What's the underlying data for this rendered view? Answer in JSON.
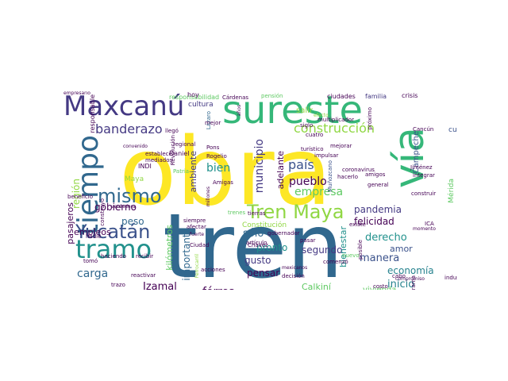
{
  "colors": {
    "background": "#ffffff",
    "palette": [
      "#fde725",
      "#35b779",
      "#31688e",
      "#443983",
      "#440154",
      "#90d743",
      "#21918c",
      "#3b528b",
      "#5ec962",
      "#26828e"
    ]
  },
  "words": [
    {
      "text": "obra",
      "size": 118,
      "color": "#fde725",
      "rot": 0
    },
    {
      "text": "tren",
      "size": 112,
      "color": "#31688e",
      "rot": 0
    },
    {
      "text": "sureste",
      "size": 48,
      "color": "#35b779",
      "rot": 0
    },
    {
      "text": "vía",
      "size": 52,
      "color": "#35b779",
      "rot": -90
    },
    {
      "text": "Maxcanú",
      "size": 34,
      "color": "#443983",
      "rot": 0
    },
    {
      "text": "tiempo",
      "size": 36,
      "color": "#31688e",
      "rot": -90
    },
    {
      "text": "tramo",
      "size": 32,
      "color": "#21918c",
      "rot": 0
    },
    {
      "text": "mismo",
      "size": 24,
      "color": "#31688e",
      "rot": 0
    },
    {
      "text": "Tren Maya",
      "size": 24,
      "color": "#90d743",
      "rot": 0
    },
    {
      "text": "Yucatán",
      "size": 24,
      "color": "#3b528b",
      "rot": 0
    },
    {
      "text": "banderazo",
      "size": 16,
      "color": "#443983",
      "rot": 0
    },
    {
      "text": "construcción",
      "size": 16,
      "color": "#90d743",
      "rot": 0
    },
    {
      "text": "país",
      "size": 16,
      "color": "#3b528b",
      "rot": 0
    },
    {
      "text": "pueblo",
      "size": 14,
      "color": "#440154",
      "rot": 0
    },
    {
      "text": "empresa",
      "size": 14,
      "color": "#5ec962",
      "rot": 0
    },
    {
      "text": "municipio",
      "size": 14,
      "color": "#443983",
      "rot": -90
    },
    {
      "text": "bien",
      "size": 14,
      "color": "#21918c",
      "rot": 0
    },
    {
      "text": "gobierno",
      "size": 12,
      "color": "#440154",
      "rot": 0
    },
    {
      "text": "pandemia",
      "size": 12,
      "color": "#443983",
      "rot": 0
    },
    {
      "text": "felicidad",
      "size": 12,
      "color": "#440154",
      "rot": 0
    },
    {
      "text": "peso",
      "size": 12,
      "color": "#31688e",
      "rot": 0
    },
    {
      "text": "empleos",
      "size": 11,
      "color": "#440154",
      "rot": 0
    },
    {
      "text": "carga",
      "size": 14,
      "color": "#31688e",
      "rot": 0
    },
    {
      "text": "Izamal",
      "size": 13,
      "color": "#440154",
      "rot": 0
    },
    {
      "text": "derecho",
      "size": 13,
      "color": "#21918c",
      "rot": 0
    },
    {
      "text": "amor",
      "size": 11,
      "color": "#3b528b",
      "rot": 0
    },
    {
      "text": "manera",
      "size": 13,
      "color": "#3b528b",
      "rot": 0
    },
    {
      "text": "economía",
      "size": 12,
      "color": "#26828e",
      "rot": 0
    },
    {
      "text": "inicio",
      "size": 13,
      "color": "#26828e",
      "rot": 0
    },
    {
      "text": "sólo",
      "size": 13,
      "color": "#31688e",
      "rot": 0
    },
    {
      "text": "pronto",
      "size": 12,
      "color": "#21918c",
      "rot": 0
    },
    {
      "text": "gusto",
      "size": 12,
      "color": "#443983",
      "rot": 0
    },
    {
      "text": "segundo",
      "size": 12,
      "color": "#443983",
      "rot": 0
    },
    {
      "text": "pensar",
      "size": 12,
      "color": "#440154",
      "rot": 0
    },
    {
      "text": "férrea",
      "size": 14,
      "color": "#440154",
      "rot": 0
    },
    {
      "text": "vivienda",
      "size": 10,
      "color": "#5ec962",
      "rot": 0
    },
    {
      "text": "Calkiní",
      "size": 11,
      "color": "#5ec962",
      "rot": 0
    },
    {
      "text": "Constitución",
      "size": 9,
      "color": "#90d743",
      "rot": 0
    },
    {
      "text": "importante",
      "size": 12,
      "color": "#31688e",
      "rot": -90
    },
    {
      "text": "adelante",
      "size": 11,
      "color": "#440154",
      "rot": -90
    },
    {
      "text": "ambiente",
      "size": 11,
      "color": "#443983",
      "rot": -90
    },
    {
      "text": "bienestar",
      "size": 11,
      "color": "#21918c",
      "rot": -90
    },
    {
      "text": "región",
      "size": 12,
      "color": "#90d743",
      "rot": -90
    },
    {
      "text": "pasajeros",
      "size": 11,
      "color": "#440154",
      "rot": -90
    },
    {
      "text": "kilómetros",
      "size": 11,
      "color": "#5ec962",
      "rot": -90
    },
    {
      "text": "Campeche",
      "size": 10,
      "color": "#3b528b",
      "rot": -90
    },
    {
      "text": "cualquier",
      "size": 9,
      "color": "#3b528b",
      "rot": 0
    },
    {
      "text": "Mérida",
      "size": 9,
      "color": "#5ec962",
      "rot": -90
    },
    {
      "text": "responsable",
      "size": 8,
      "color": "#440154",
      "rot": -90
    },
    {
      "text": "responsabilidad",
      "size": 8,
      "color": "#5ec962",
      "rot": 0
    },
    {
      "text": "Cárdenas",
      "size": 7,
      "color": "#440154",
      "rot": 0
    },
    {
      "text": "pensión",
      "size": 7,
      "color": "#5ec962",
      "rot": 0
    },
    {
      "text": "ciudades",
      "size": 8,
      "color": "#440154",
      "rot": 0
    },
    {
      "text": "familia",
      "size": 8,
      "color": "#443983",
      "rot": 0
    },
    {
      "text": "crisis",
      "size": 8,
      "color": "#440154",
      "rot": 0
    },
    {
      "text": "multiplicador",
      "size": 7,
      "color": "#440154",
      "rot": 0
    },
    {
      "text": "cultura",
      "size": 9,
      "color": "#443983",
      "rot": 0
    },
    {
      "text": "hoy",
      "size": 8,
      "color": "#440154",
      "rot": 0
    },
    {
      "text": "salir",
      "size": 10,
      "color": "#90d743",
      "rot": 0
    },
    {
      "text": "Lázaro",
      "size": 7,
      "color": "#31688e",
      "rot": -90
    },
    {
      "text": "mejor",
      "size": 7,
      "color": "#440154",
      "rot": 0
    },
    {
      "text": "siglo",
      "size": 7,
      "color": "#440154",
      "rot": 0
    },
    {
      "text": "cuatro",
      "size": 7,
      "color": "#440154",
      "rot": 0
    },
    {
      "text": "Cancún",
      "size": 7,
      "color": "#440154",
      "rot": 0
    },
    {
      "text": "próximo",
      "size": 7,
      "color": "#440154",
      "rot": -90
    },
    {
      "text": "Revolución",
      "size": 7,
      "color": "#440154",
      "rot": -90
    },
    {
      "text": "llegó",
      "size": 7,
      "color": "#440154",
      "rot": 0
    },
    {
      "text": "establece",
      "size": 7,
      "color": "#440154",
      "rot": 0
    },
    {
      "text": "mediados",
      "size": 7,
      "color": "#440154",
      "rot": 0
    },
    {
      "text": "regional",
      "size": 7,
      "color": "#440154",
      "rot": 0
    },
    {
      "text": "Pons",
      "size": 7,
      "color": "#440154",
      "rot": 0
    },
    {
      "text": "Rogelio",
      "size": 7,
      "color": "#440154",
      "rot": 0
    },
    {
      "text": "Patria",
      "size": 7,
      "color": "#5ec962",
      "rot": 0
    },
    {
      "text": "Amigas",
      "size": 7,
      "color": "#440154",
      "rot": 0
    },
    {
      "text": "INDI",
      "size": 8,
      "color": "#440154",
      "rot": 0
    },
    {
      "text": "Maya",
      "size": 9,
      "color": "#90d743",
      "rot": 0
    },
    {
      "text": "Daniel",
      "size": 8,
      "color": "#440154",
      "rot": 0
    },
    {
      "text": "Muñozcano",
      "size": 7,
      "color": "#3b528b",
      "rot": -90
    },
    {
      "text": "turístico",
      "size": 7,
      "color": "#440154",
      "rot": 0
    },
    {
      "text": "mejorar",
      "size": 7,
      "color": "#440154",
      "rot": 0
    },
    {
      "text": "impulsar",
      "size": 7,
      "color": "#440154",
      "rot": 0
    },
    {
      "text": "coronavirus",
      "size": 7,
      "color": "#440154",
      "rot": 0
    },
    {
      "text": "hacerlo",
      "size": 7,
      "color": "#440154",
      "rot": 0
    },
    {
      "text": "amigos",
      "size": 7,
      "color": "#440154",
      "rot": 0
    },
    {
      "text": "general",
      "size": 7,
      "color": "#440154",
      "rot": 0
    },
    {
      "text": "Jiménez",
      "size": 7,
      "color": "#440154",
      "rot": 0
    },
    {
      "text": "integrar",
      "size": 7,
      "color": "#440154",
      "rot": 0
    },
    {
      "text": "construir",
      "size": 7,
      "color": "#440154",
      "rot": 0
    },
    {
      "text": "beneficio",
      "size": 7,
      "color": "#440154",
      "rot": 0
    },
    {
      "text": "trenes",
      "size": 7,
      "color": "#5ec962",
      "rot": 0
    },
    {
      "text": "nadie",
      "size": 7,
      "color": "#440154",
      "rot": 0
    },
    {
      "text": "haciendo",
      "size": 7,
      "color": "#440154",
      "rot": 0
    },
    {
      "text": "recibir",
      "size": 7,
      "color": "#440154",
      "rot": 0
    },
    {
      "text": "siempre",
      "size": 7,
      "color": "#440154",
      "rot": 0
    },
    {
      "text": "afectar",
      "size": 7,
      "color": "#440154",
      "rot": 0
    },
    {
      "text": "Ciudad",
      "size": 7,
      "color": "#440154",
      "rot": 0
    },
    {
      "text": "Chávez",
      "size": 7,
      "color": "#440154",
      "rot": 0
    },
    {
      "text": "acciones",
      "size": 7,
      "color": "#440154",
      "rot": 0
    },
    {
      "text": "decisión",
      "size": 7,
      "color": "#440154",
      "rot": 0
    },
    {
      "text": "tierras",
      "size": 7,
      "color": "#440154",
      "rot": 0
    },
    {
      "text": "artículo",
      "size": 7,
      "color": "#440154",
      "rot": 0
    },
    {
      "text": "gobernador",
      "size": 7,
      "color": "#440154",
      "rot": 0
    },
    {
      "text": "comenzó",
      "size": 7,
      "color": "#440154",
      "rot": 0
    },
    {
      "text": "pasar",
      "size": 7,
      "color": "#440154",
      "rot": 0
    },
    {
      "text": "existe",
      "size": 7,
      "color": "#440154",
      "rot": 0
    },
    {
      "text": "posible",
      "size": 7,
      "color": "#440154",
      "rot": -90
    },
    {
      "text": "programa",
      "size": 7,
      "color": "#440154",
      "rot": -90
    },
    {
      "text": "industria",
      "size": 7,
      "color": "#440154",
      "rot": 0
    },
    {
      "text": "ICA",
      "size": 7,
      "color": "#440154",
      "rot": 0
    },
    {
      "text": "tomó",
      "size": 7,
      "color": "#440154",
      "rot": 0
    },
    {
      "text": "reactivar",
      "size": 7,
      "color": "#440154",
      "rot": 0
    },
    {
      "text": "trazo",
      "size": 7,
      "color": "#440154",
      "rot": 0
    },
    {
      "text": "cabo",
      "size": 7,
      "color": "#440154",
      "rot": 0
    },
    {
      "text": "costo",
      "size": 7,
      "color": "#440154",
      "rot": 0
    },
    {
      "text": "nuevo",
      "size": 7,
      "color": "#5ec962",
      "rot": 0
    },
    {
      "text": "construyó",
      "size": 7,
      "color": "#440154",
      "rot": -90
    },
    {
      "text": "verdadera",
      "size": 6,
      "color": "#440154",
      "rot": 0
    },
    {
      "text": "convenido",
      "size": 6,
      "color": "#440154",
      "rot": 0
    },
    {
      "text": "efecto",
      "size": 6,
      "color": "#90d743",
      "rot": 0
    },
    {
      "text": "años",
      "size": 6,
      "color": "#440154",
      "rot": -90
    },
    {
      "text": "fuerte",
      "size": 6,
      "color": "#440154",
      "rot": 0
    },
    {
      "text": "mexicanos",
      "size": 6,
      "color": "#440154",
      "rot": 0
    },
    {
      "text": "compromiso",
      "size": 6,
      "color": "#440154",
      "rot": 0
    },
    {
      "text": "momento",
      "size": 6,
      "color": "#440154",
      "rot": 0
    },
    {
      "text": "millones",
      "size": 6,
      "color": "#440154",
      "rot": -90
    },
    {
      "text": "Ferrocarril",
      "size": 6,
      "color": "#90d743",
      "rot": -90
    },
    {
      "text": "empresario",
      "size": 6,
      "color": "#440154",
      "rot": 0
    }
  ]
}
